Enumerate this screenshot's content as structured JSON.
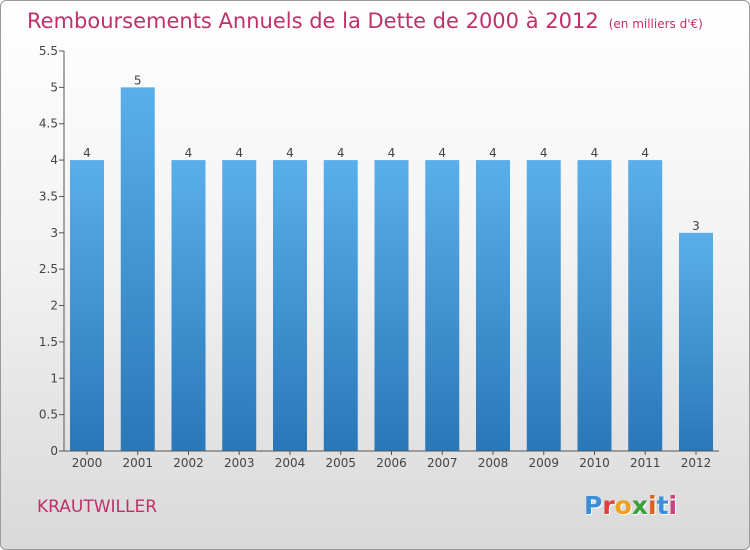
{
  "title": "Remboursements Annuels de la Dette de 2000 à 2012",
  "unit_note": "(en milliers d'€)",
  "commune": "KRAUTWILLER",
  "logo_text": "Proxiti",
  "colors": {
    "title": "#c0306a",
    "bar_top": "#5aafea",
    "bar_bottom": "#2a77b8",
    "axis": "#555555",
    "logo": [
      "#3a8fd8",
      "#e0403a",
      "#f0a020",
      "#3aa03a",
      "#e06020",
      "#3a8fd8",
      "#d04080"
    ]
  },
  "chart_data": {
    "type": "bar",
    "title": "Remboursements Annuels de la Dette de 2000 à 2012",
    "xlabel": "",
    "ylabel": "",
    "categories": [
      "2000",
      "2001",
      "2002",
      "2003",
      "2004",
      "2005",
      "2006",
      "2007",
      "2008",
      "2009",
      "2010",
      "2011",
      "2012"
    ],
    "values": [
      4,
      5,
      4,
      4,
      4,
      4,
      4,
      4,
      4,
      4,
      4,
      4,
      3
    ],
    "data_labels": [
      "4",
      "5",
      "4",
      "4",
      "4",
      "4",
      "4",
      "4",
      "4",
      "4",
      "4",
      "4",
      "3"
    ],
    "ylim": [
      0,
      5.5
    ],
    "yticks": [
      0,
      0.5,
      1,
      1.5,
      2,
      2.5,
      3,
      3.5,
      4,
      4.5,
      5,
      5.5
    ],
    "ytick_labels": [
      "0",
      "0.5",
      "1",
      "1.5",
      "2",
      "2.5",
      "3",
      "3.5",
      "4",
      "4.5",
      "5",
      "5.5"
    ],
    "grid": false,
    "legend": "none"
  }
}
